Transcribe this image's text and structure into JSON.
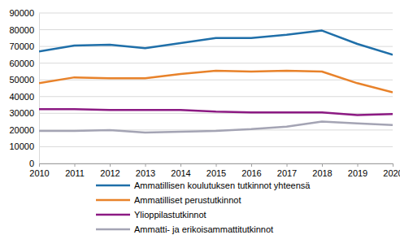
{
  "chart_data": {
    "type": "line",
    "x": [
      2010,
      2011,
      2012,
      2013,
      2014,
      2015,
      2016,
      2017,
      2018,
      2019,
      2020
    ],
    "series": [
      {
        "name": "Ammatillisen koulutuksen tutkinnot yhteensä",
        "color": "#1f6fa9",
        "values": [
          67000,
          70500,
          71000,
          69000,
          72000,
          75000,
          75000,
          77000,
          79500,
          71500,
          65000
        ]
      },
      {
        "name": "Ammatilliset perustutkinnot",
        "color": "#e8822a",
        "values": [
          48000,
          51500,
          51000,
          51000,
          53500,
          55500,
          55000,
          55500,
          55000,
          48000,
          42500
        ]
      },
      {
        "name": "Ylioppilastutkinnot",
        "color": "#8c1a83",
        "values": [
          32500,
          32500,
          32000,
          32000,
          32000,
          31000,
          30500,
          30500,
          30500,
          29000,
          29500
        ]
      },
      {
        "name": "Ammatti- ja erikoisammattitutkinnot",
        "color": "#a4a4b4",
        "values": [
          19500,
          19500,
          20000,
          18500,
          19000,
          19500,
          20500,
          22000,
          25000,
          24000,
          23000
        ]
      }
    ],
    "xlim": [
      2010,
      2020
    ],
    "xticks": [
      2010,
      2011,
      2012,
      2013,
      2014,
      2015,
      2016,
      2017,
      2018,
      2019,
      2020
    ],
    "ylim": [
      0,
      90000
    ],
    "yticks": [
      0,
      10000,
      20000,
      30000,
      40000,
      50000,
      60000,
      70000,
      80000,
      90000
    ],
    "grid": true,
    "legend": "bottom"
  }
}
